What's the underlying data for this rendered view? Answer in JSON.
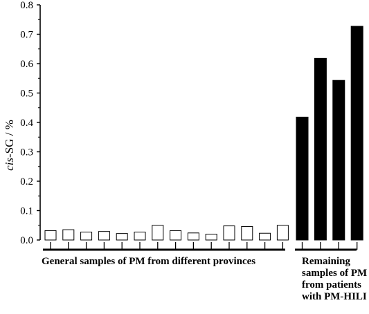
{
  "chart_data": {
    "type": "bar",
    "ylabel_italic": "cis",
    "ylabel_rest": "-SG / %",
    "ylim": [
      0,
      0.8
    ],
    "yticks": [
      "0.0",
      "0.1",
      "0.2",
      "0.3",
      "0.4",
      "0.5",
      "0.6",
      "0.7",
      "0.8"
    ],
    "grid": false,
    "groups": [
      {
        "label": "General samples of PM from different provinces",
        "fill": "#ffffff",
        "values": [
          0.032,
          0.035,
          0.027,
          0.029,
          0.022,
          0.027,
          0.05,
          0.032,
          0.024,
          0.02,
          0.048,
          0.046,
          0.023,
          0.05
        ]
      },
      {
        "label": "Remaining samples of PM from patients with PM-HILI",
        "fill": "#000000",
        "values": [
          0.418,
          0.618,
          0.543,
          0.727
        ]
      }
    ]
  }
}
